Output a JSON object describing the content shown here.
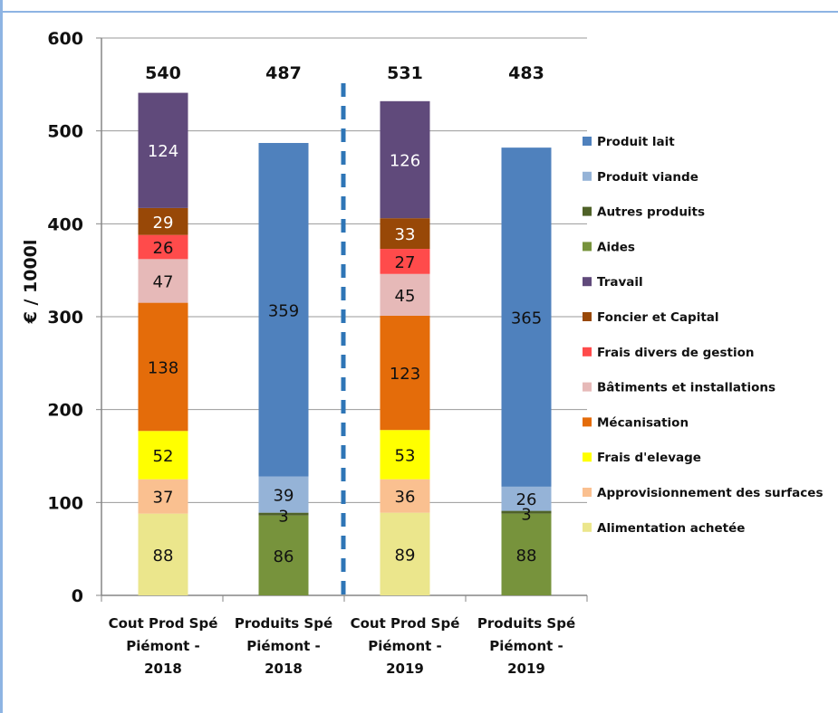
{
  "colors": {
    "frame": "#8eb4e3",
    "axis": "#868686",
    "separator": "#2e75b6"
  },
  "chart_data": {
    "type": "bar",
    "stacked": true,
    "ylabel": "€ / 1000l",
    "ylim": [
      0,
      600
    ],
    "yticks": [
      0,
      100,
      200,
      300,
      400,
      500,
      600
    ],
    "grid": true,
    "legend_position": "right",
    "categories": [
      [
        "Cout Prod  Spé",
        "Piémont -",
        "2018"
      ],
      [
        "Produits Spé",
        "Piémont -",
        "2018"
      ],
      [
        "Cout Prod  Spé",
        "Piémont -",
        "2019"
      ],
      [
        "Produits Spé",
        "Piémont -",
        "2019"
      ]
    ],
    "totals": [
      "540",
      "487",
      "531",
      "483"
    ],
    "series": [
      {
        "name": "Produit lait",
        "color": "#4f81bd",
        "values": [
          null,
          359,
          null,
          365
        ]
      },
      {
        "name": "Produit viande",
        "color": "#95b3d7",
        "values": [
          null,
          39,
          null,
          26
        ]
      },
      {
        "name": "Autres produits",
        "color": "#4f6228",
        "values": [
          null,
          3,
          null,
          3
        ]
      },
      {
        "name": "Aides",
        "color": "#77933c",
        "values": [
          null,
          86,
          null,
          88
        ]
      },
      {
        "name": "Travail",
        "color": "#604a7b",
        "values": [
          124,
          null,
          126,
          null
        ]
      },
      {
        "name": "Foncier et Capital",
        "color": "#984807",
        "values": [
          29,
          null,
          33,
          null
        ]
      },
      {
        "name": "Frais divers de gestion",
        "color": "#ff4b4b",
        "values": [
          26,
          null,
          27,
          null
        ]
      },
      {
        "name": "Bâtiments et installations",
        "color": "#e6b9b8",
        "values": [
          47,
          null,
          45,
          null
        ]
      },
      {
        "name": "Mécanisation",
        "color": "#e46c0a",
        "values": [
          138,
          null,
          123,
          null
        ]
      },
      {
        "name": "Frais d'elevage",
        "color": "#ffff00",
        "values": [
          52,
          null,
          53,
          null
        ]
      },
      {
        "name": "Approvisionnement des surfaces",
        "color": "#fac090",
        "values": [
          37,
          null,
          36,
          null
        ]
      },
      {
        "name": "Alimentation achetée",
        "color": "#ebe68c",
        "values": [
          88,
          null,
          89,
          null
        ]
      }
    ],
    "stack_order_bottom_to_top": [
      "Alimentation achetée",
      "Approvisionnement des surfaces",
      "Frais d'elevage",
      "Mécanisation",
      "Bâtiments et installations",
      "Frais divers de gestion",
      "Foncier et Capital",
      "Travail",
      "Aides",
      "Autres produits",
      "Produit viande",
      "Produit lait"
    ]
  }
}
